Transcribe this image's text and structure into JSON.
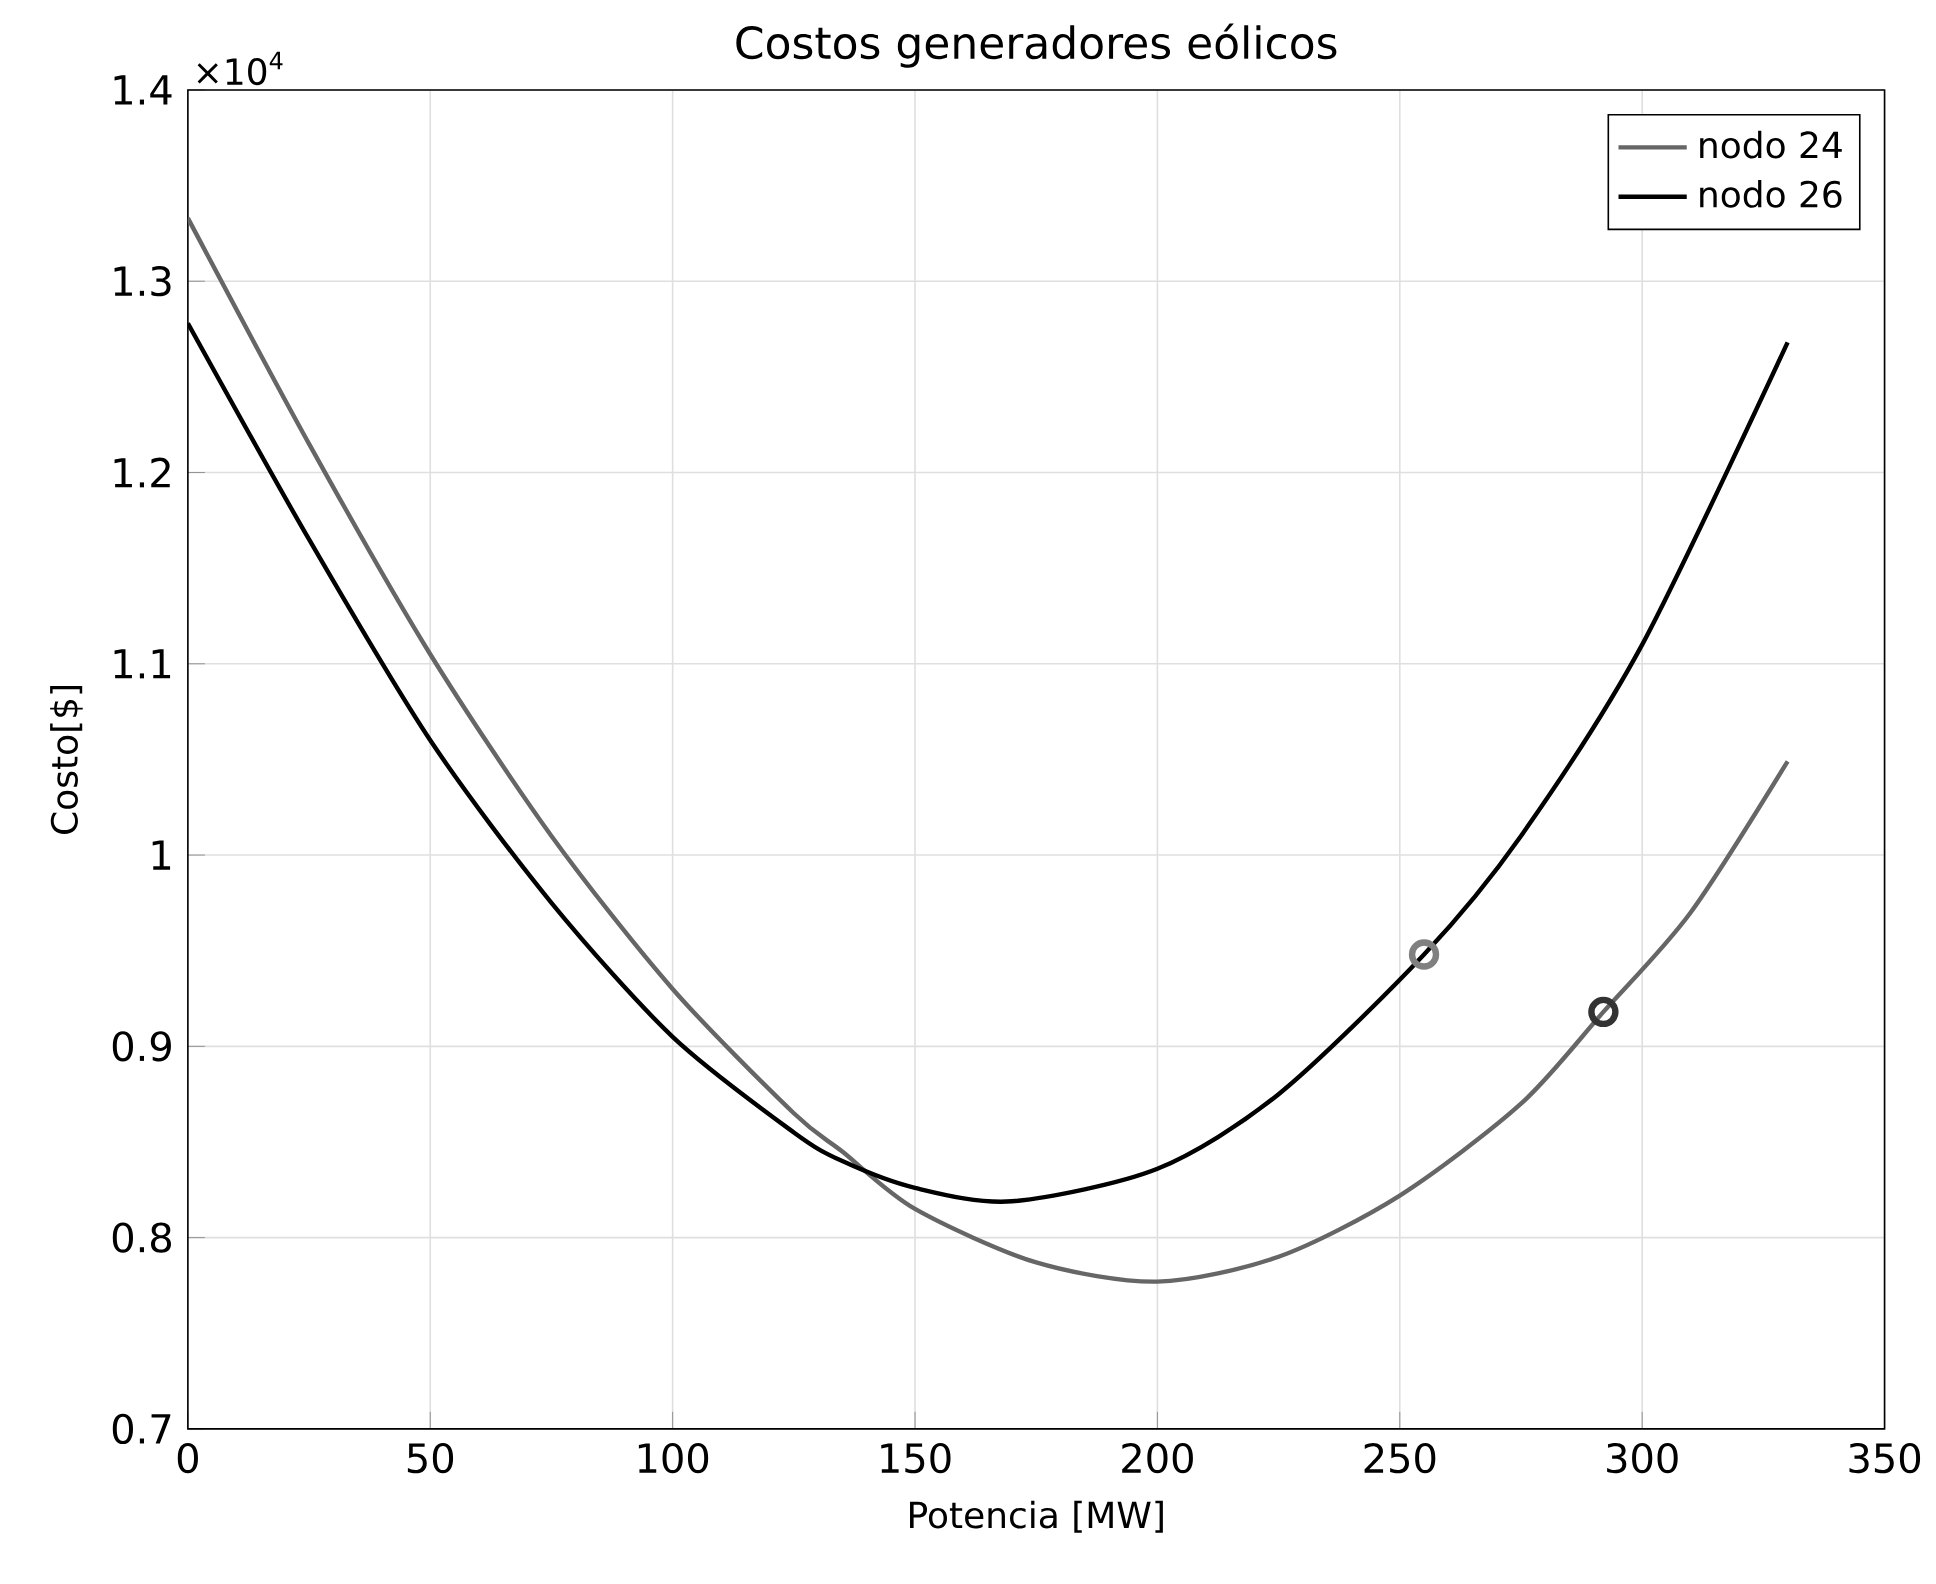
{
  "chart_data": {
    "type": "line",
    "title": "Costos generadores eólicos",
    "xlabel": "Potencia [MW]",
    "ylabel": "Costo[$]",
    "annotations": [
      "×10$^{4}$"
    ],
    "xlim": [
      0,
      350
    ],
    "ylim": [
      0.7,
      1.4
    ],
    "xticks": [
      0,
      50,
      100,
      150,
      200,
      250,
      300,
      350
    ],
    "yticks": [
      0.7,
      0.8,
      0.9,
      1,
      1.1,
      1.2,
      1.3,
      1.4
    ],
    "grid": true,
    "legend": "top right",
    "line_style": "solid",
    "series": [
      {
        "name": "nodo 24",
        "color": "#666666",
        "x": [
          0,
          25,
          50,
          75,
          100,
          125,
          135,
          150,
          175,
          200,
          225,
          250,
          275,
          292,
          310,
          330
        ],
        "values": [
          1.333,
          1.215,
          1.105,
          1.01,
          0.93,
          0.865,
          0.845,
          0.815,
          0.787,
          0.777,
          0.79,
          0.822,
          0.87,
          0.918,
          0.97,
          1.049
        ]
      },
      {
        "name": "nodo 26",
        "color": "#000000",
        "x": [
          0,
          25,
          50,
          75,
          100,
          125,
          135,
          150,
          170,
          200,
          225,
          255,
          275,
          300,
          330
        ],
        "values": [
          1.278,
          1.165,
          1.06,
          0.975,
          0.905,
          0.855,
          0.84,
          0.826,
          0.819,
          0.836,
          0.875,
          0.948,
          1.01,
          1.11,
          1.268
        ]
      },
      {
        "type": "scatter",
        "marker": "circle",
        "color": "#808080",
        "x": [
          255
        ],
        "values": [
          0.948
        ]
      },
      {
        "type": "scatter",
        "marker": "circle",
        "color": "#333333",
        "x": [
          292
        ],
        "values": [
          0.918
        ]
      }
    ]
  }
}
